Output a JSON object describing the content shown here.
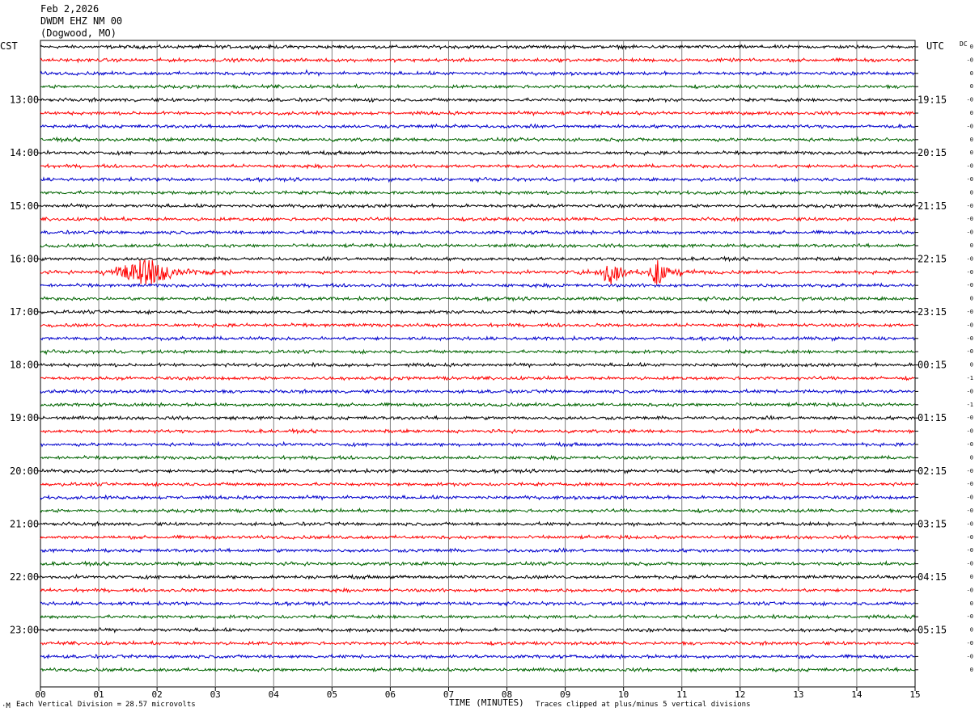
{
  "header": {
    "date": "Feb 2,2026",
    "station": "DWDM EHZ NM 00",
    "location": "(Dogwood, MO)"
  },
  "left_axis_title": "CST",
  "right_axis_title": "UTC",
  "dc_title": "DC",
  "footer": {
    "corner_mark": "·M",
    "scale_label": "Each Vertical Division =",
    "scale_value": "28.57 microvolts",
    "clip_note": "Traces clipped at plus/minus 5 vertical divisions"
  },
  "colors": {
    "trace_cycle": [
      "#000000",
      "#ff0000",
      "#0000cc",
      "#006400"
    ],
    "grid": "#808080"
  },
  "chart_data": {
    "type": "line",
    "title": "",
    "xlabel": "TIME (MINUTES)",
    "x_ticks": [
      "00",
      "01",
      "02",
      "03",
      "04",
      "05",
      "06",
      "07",
      "08",
      "09",
      "10",
      "11",
      "12",
      "13",
      "14",
      "15"
    ],
    "xlim": [
      0,
      15
    ],
    "traces_per_hour": 4,
    "minutes_per_trace": 15,
    "start_time_cst": "12:00",
    "end_time_cst": "24:00",
    "cst_hour_labels": [
      "13:00",
      "14:00",
      "15:00",
      "16:00",
      "17:00",
      "18:00",
      "19:00",
      "20:00",
      "21:00",
      "22:00",
      "23:00"
    ],
    "utc_labels": [
      "19:15",
      "20:15",
      "21:15",
      "22:15",
      "23:15",
      "00:15",
      "01:15",
      "02:15",
      "03:15",
      "04:15",
      "05:15"
    ],
    "dc_offsets": [
      "0",
      "-0",
      "0",
      "0",
      "-0",
      "0",
      "-0",
      "0",
      "0",
      "-0",
      "-0",
      "0",
      "-0",
      "-0",
      "-0",
      "0",
      "-0",
      "-0",
      "-0",
      "0",
      "-0",
      "-0",
      "-0",
      "-0",
      "0",
      "-1",
      "-0",
      "-1",
      "-0",
      "-0",
      "-0",
      "0",
      "-0",
      "-0",
      "-0",
      "-0",
      "-0",
      "-0",
      "-0",
      "-0",
      "0",
      "-0",
      "0",
      "-0",
      "0",
      "-0",
      "-0",
      "0"
    ],
    "events": [
      {
        "trace_index": 17,
        "start_minute": 1.3,
        "end_minute": 2.8,
        "peak_minute": 1.8,
        "amplitude_divisions": 5
      },
      {
        "trace_index": 17,
        "start_minute": 9.6,
        "end_minute": 10.2,
        "peak_minute": 9.8,
        "amplitude_divisions": 5
      },
      {
        "trace_index": 17,
        "start_minute": 10.3,
        "end_minute": 10.9,
        "peak_minute": 10.6,
        "amplitude_divisions": 5
      },
      {
        "trace_index": 2,
        "start_minute": 4.2,
        "end_minute": 4.7,
        "peak_minute": 4.5,
        "amplitude_divisions": 0.6
      },
      {
        "trace_index": 4,
        "start_minute": 5.5,
        "end_minute": 5.9,
        "peak_minute": 5.7,
        "amplitude_divisions": 0.5
      },
      {
        "trace_index": 5,
        "start_minute": 8.5,
        "end_minute": 8.9,
        "peak_minute": 8.7,
        "amplitude_divisions": 0.4
      },
      {
        "trace_index": 6,
        "start_minute": 6.8,
        "end_minute": 7.3,
        "peak_minute": 7.1,
        "amplitude_divisions": 0.35
      },
      {
        "trace_index": 17,
        "start_minute": 12.5,
        "end_minute": 12.8,
        "peak_minute": 12.7,
        "amplitude_divisions": 0.4
      },
      {
        "trace_index": 20,
        "start_minute": 14.4,
        "end_minute": 14.8,
        "peak_minute": 14.6,
        "amplitude_divisions": 0.3
      }
    ]
  }
}
